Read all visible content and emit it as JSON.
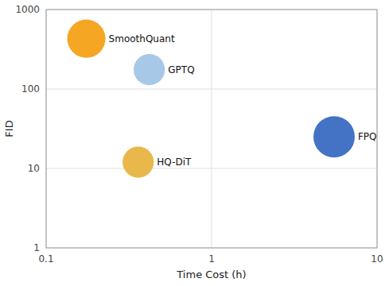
{
  "chart_data": {
    "type": "scatter",
    "xlabel": "Time Cost (h)",
    "ylabel": "FID",
    "log": true,
    "grid": true,
    "xlim": [
      0.1,
      10
    ],
    "ylim": [
      1,
      1000
    ],
    "xticks": [
      0.1,
      1,
      10
    ],
    "yticks": [
      1,
      10,
      100,
      1000
    ],
    "labels": [
      "SmoothQuant",
      "GPTQ",
      "HQ-DiT",
      "FPQ"
    ],
    "x": [
      0.175,
      0.42,
      0.36,
      5.5
    ],
    "values": [
      430,
      175,
      12,
      25
    ],
    "sizes": [
      1200,
      800,
      800,
      1400
    ],
    "colors": [
      "#F5A623",
      "#A8C8E8",
      "#E8B84B",
      "#4472C4"
    ]
  }
}
